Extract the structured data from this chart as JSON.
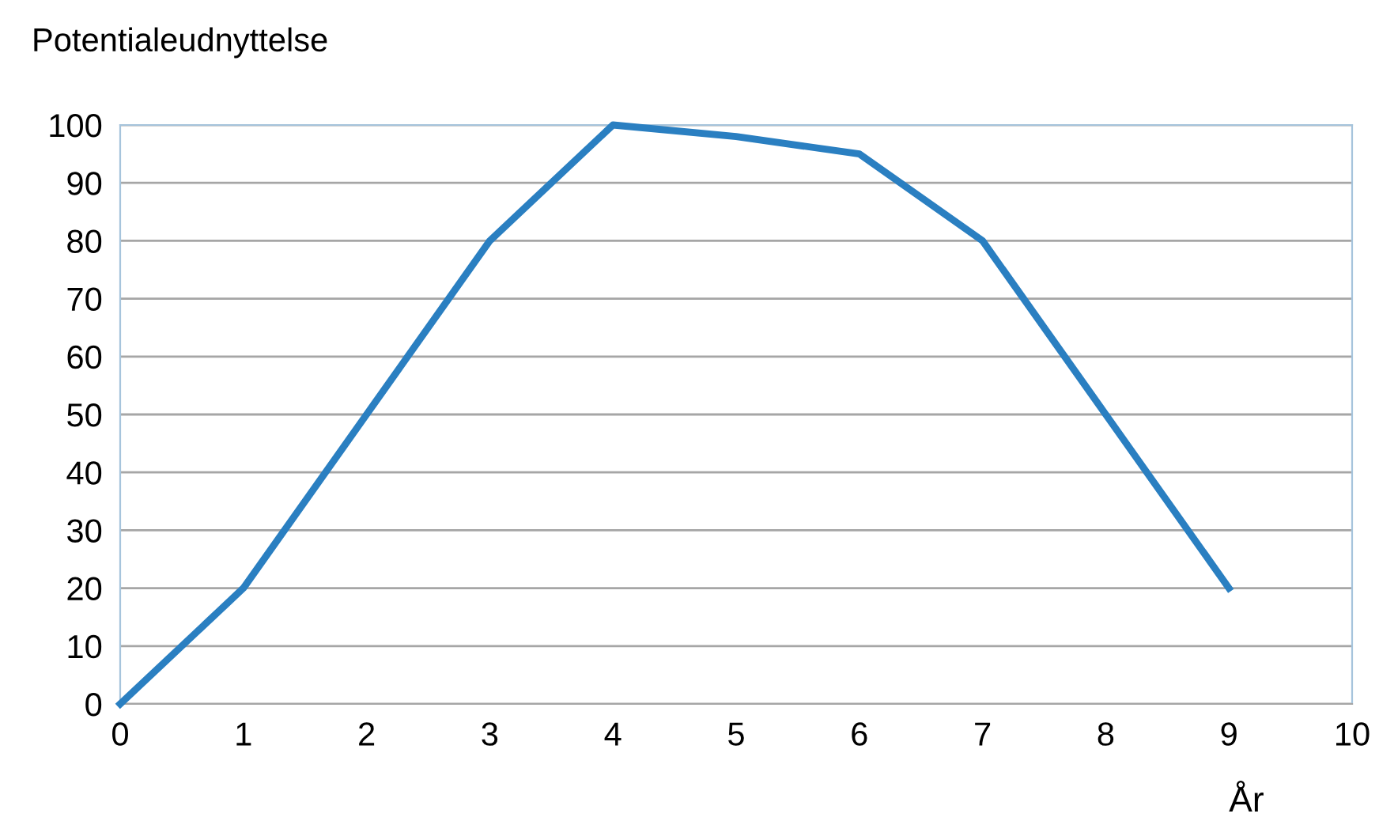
{
  "chart_data": {
    "type": "line",
    "ylabel": "Potentialeudnyttelse",
    "xlabel": "År",
    "x": [
      0,
      1,
      2,
      3,
      4,
      5,
      6,
      7,
      8,
      9
    ],
    "series": [
      {
        "color": "#2a7fc1",
        "values": [
          0,
          20,
          50,
          80,
          100,
          98,
          95,
          80,
          50,
          20
        ]
      }
    ],
    "xlim": [
      0,
      10
    ],
    "xticks": [
      0,
      1,
      2,
      3,
      4,
      5,
      6,
      7,
      8,
      9,
      10
    ],
    "ylim": [
      0,
      100
    ],
    "yticks": [
      0,
      10,
      20,
      30,
      40,
      50,
      60,
      70,
      80,
      90,
      100
    ],
    "grid": "y",
    "legend": false,
    "marker": "none",
    "line_style": "solid"
  }
}
